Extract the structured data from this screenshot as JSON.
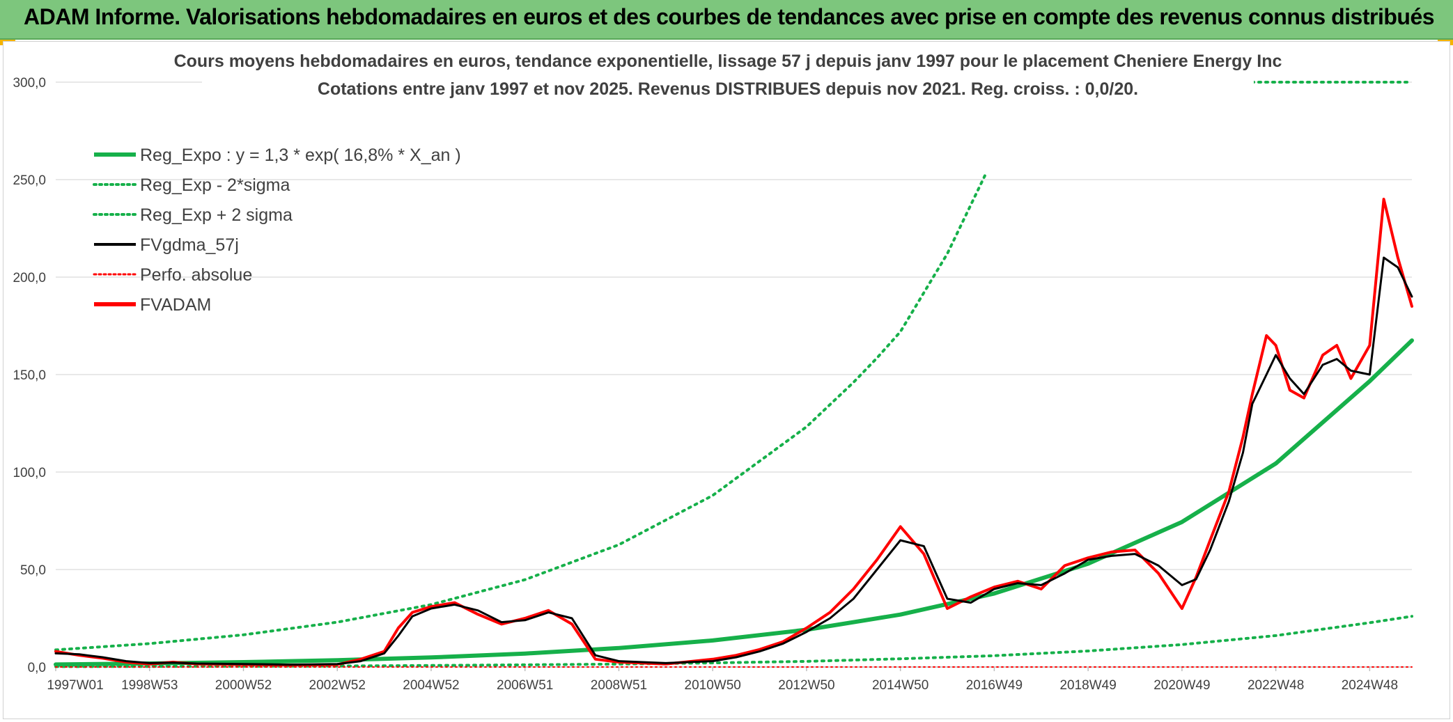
{
  "header": {
    "title": "ADAM Informe. Valorisations hebdomadaires en euros et des courbes de tendances avec prise en compte des revenus connus distribués"
  },
  "colors": {
    "header_bg": "#7dc67d",
    "reg_expo": "#16b04a",
    "sigma_lines": "#16b04a",
    "fvgdma": "#000000",
    "perfo": "#ff0000",
    "fvadam": "#ff0000"
  },
  "chart_data": {
    "type": "line",
    "title_lines": [
      "Cours moyens hebdomadaires en euros, tendance exponentielle, lissage 57 j depuis janv 1997 pour le placement Cheniere Energy Inc",
      "Cotations entre janv 1997 et nov 2025. Revenus DISTRIBUES depuis nov 2021. Reg. croiss. : 0,0/20."
    ],
    "ylim": [
      0,
      300
    ],
    "y_ticks": [
      "0,0",
      "50,0",
      "100,0",
      "150,0",
      "200,0",
      "250,0",
      "300,0"
    ],
    "x_tick_labels": [
      "1997W01",
      "1998W53",
      "2000W52",
      "2002W52",
      "2004W52",
      "2006W51",
      "2008W51",
      "2010W50",
      "2012W50",
      "2014W50",
      "2016W49",
      "2018W49",
      "2020W49",
      "2022W48",
      "2024W48"
    ],
    "grid": "horizontal",
    "legend_position": "top-left",
    "legend": [
      {
        "label": "Reg_Expo : y = 1,3 * exp( 16,8% *  X_an )",
        "style": "solid-thick",
        "color": "#16b04a"
      },
      {
        "label": "Reg_Exp - 2*sigma",
        "style": "dotted",
        "color": "#16b04a"
      },
      {
        "label": "Reg_Exp + 2 sigma",
        "style": "dotted",
        "color": "#16b04a"
      },
      {
        "label": "FVgdma_57j",
        "style": "solid",
        "color": "#000000"
      },
      {
        "label": "Perfo. absolue",
        "style": "dotted-thin",
        "color": "#ff0000"
      },
      {
        "label": "FVADAM",
        "style": "solid-thick",
        "color": "#ff0000"
      }
    ],
    "x_range_years": [
      1997.0,
      2025.9
    ],
    "series": [
      {
        "name": "Reg_Expo : y = 1,3 * exp( 16,8% *  X_an )",
        "x": [
          1997,
          1999,
          2001,
          2003,
          2005,
          2007,
          2009,
          2011,
          2013,
          2015,
          2017,
          2019,
          2021,
          2023,
          2025,
          2025.9
        ],
        "values": [
          1.3,
          1.8,
          2.5,
          3.5,
          4.9,
          6.9,
          9.7,
          13.6,
          19.1,
          26.9,
          37.7,
          53.0,
          74.4,
          104.4,
          146.6,
          167.5
        ]
      },
      {
        "name": "Reg_Exp - 2*sigma",
        "x": [
          1997,
          1999,
          2001,
          2003,
          2005,
          2007,
          2009,
          2011,
          2013,
          2015,
          2017,
          2019,
          2021,
          2023,
          2025,
          2025.9
        ],
        "values": [
          0.2,
          0.3,
          0.4,
          0.5,
          0.8,
          1.1,
          1.5,
          2.1,
          2.9,
          4.2,
          5.8,
          8.2,
          11.5,
          16.1,
          22.7,
          26.0
        ]
      },
      {
        "name": "Reg_Exp + 2 sigma",
        "x": [
          1997,
          1999,
          2001,
          2003,
          2005,
          2007,
          2009,
          2011,
          2013,
          2014,
          2014.5,
          2015,
          2016,
          2016.8
        ],
        "values": [
          8.8,
          12.0,
          16.5,
          23.0,
          32.0,
          44.8,
          62.7,
          88.0,
          123.2,
          146.0,
          158.5,
          172.0,
          212.0,
          252.0
        ]
      },
      {
        "name": "FVgdma_57j",
        "x": [
          1997,
          1997.5,
          1998,
          1998.5,
          1999,
          1999.5,
          2000,
          2001,
          2002,
          2003,
          2003.5,
          2004,
          2004.3,
          2004.6,
          2005,
          2005.5,
          2006,
          2006.5,
          2007,
          2007.5,
          2008,
          2008.5,
          2009,
          2010,
          2011,
          2011.5,
          2012,
          2012.5,
          2013,
          2013.5,
          2014,
          2014.5,
          2015,
          2015.5,
          2016,
          2016.5,
          2017,
          2017.5,
          2018,
          2018.5,
          2019,
          2019.5,
          2020,
          2020.5,
          2021,
          2021.3,
          2021.6,
          2022,
          2022.3,
          2022.5,
          2022.8,
          2023,
          2023.3,
          2023.6,
          2024,
          2024.3,
          2024.6,
          2025,
          2025.3,
          2025.6,
          2025.9
        ],
        "values": [
          7,
          6.5,
          5,
          3,
          2,
          2.2,
          1.8,
          1.5,
          1.2,
          1.5,
          3,
          7,
          16,
          26,
          30,
          32,
          29,
          23,
          24,
          28,
          25,
          6,
          3,
          2,
          3,
          5,
          8,
          12,
          18,
          25,
          35,
          50,
          65,
          62,
          35,
          33,
          40,
          43,
          42,
          48,
          55,
          57,
          58,
          52,
          42,
          45,
          60,
          85,
          110,
          135,
          150,
          160,
          148,
          140,
          155,
          158,
          152,
          150,
          210,
          205,
          190
        ]
      },
      {
        "name": "Perfo. absolue",
        "x": [
          1997,
          2025.9
        ],
        "values": [
          0,
          0
        ]
      },
      {
        "name": "FVADAM",
        "x": [
          1997,
          1997.5,
          1998,
          1998.5,
          1999,
          1999.5,
          2000,
          2001,
          2002,
          2003,
          2003.5,
          2004,
          2004.3,
          2004.6,
          2005,
          2005.5,
          2006,
          2006.5,
          2007,
          2007.5,
          2008,
          2008.5,
          2009,
          2010,
          2011,
          2011.5,
          2012,
          2012.5,
          2013,
          2013.5,
          2014,
          2014.5,
          2015,
          2015.5,
          2016,
          2016.5,
          2017,
          2017.5,
          2018,
          2018.5,
          2019,
          2019.5,
          2020,
          2020.5,
          2021,
          2021.3,
          2021.6,
          2022,
          2022.3,
          2022.5,
          2022.8,
          2023,
          2023.3,
          2023.6,
          2024,
          2024.3,
          2024.6,
          2025,
          2025.3,
          2025.6,
          2025.9
        ],
        "values": [
          8,
          6,
          4.5,
          2.5,
          1.5,
          2.5,
          1.5,
          1.2,
          1.0,
          1.2,
          4,
          8,
          20,
          28,
          31,
          33,
          27,
          22,
          25,
          29,
          22,
          4,
          2.5,
          1.5,
          4,
          6,
          9,
          13,
          20,
          28,
          40,
          55,
          72,
          58,
          30,
          36,
          41,
          44,
          40,
          52,
          56,
          59,
          60,
          48,
          30,
          46,
          65,
          90,
          118,
          140,
          170,
          165,
          142,
          138,
          160,
          165,
          148,
          165,
          240,
          210,
          185
        ]
      }
    ]
  }
}
